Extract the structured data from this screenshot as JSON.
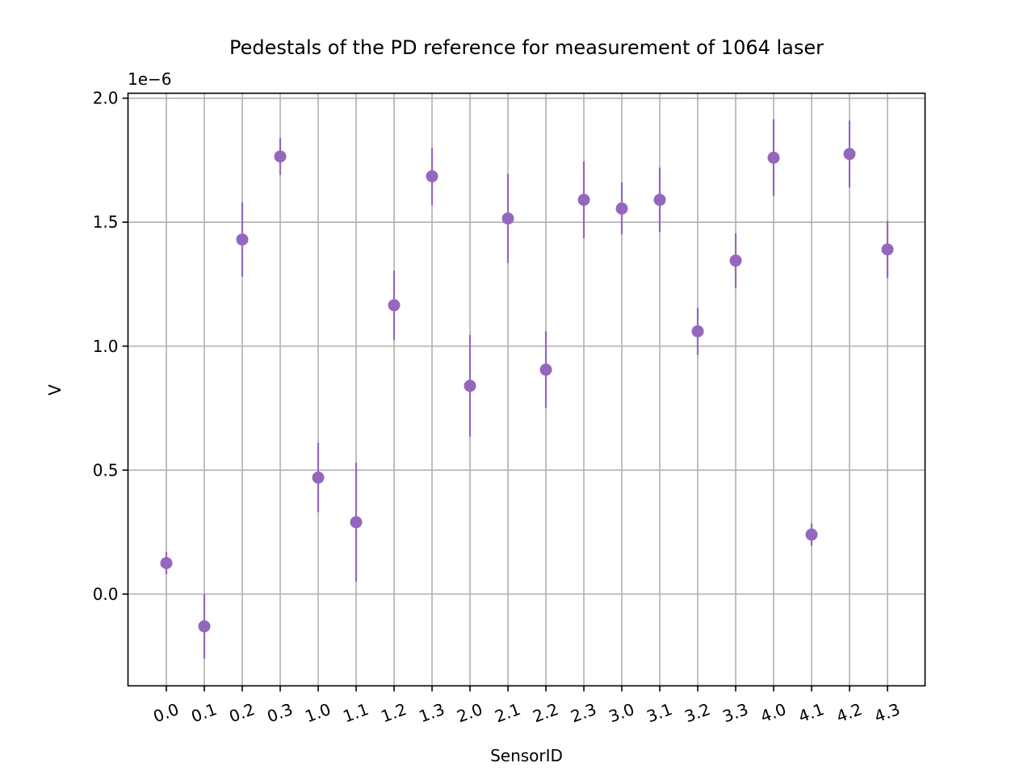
{
  "chart_data": {
    "type": "scatter",
    "title": "Pedestals of the PD reference for measurement of 1064 laser",
    "xlabel": "SensorID",
    "ylabel": "V",
    "y_offset_label": "1e−6",
    "ylim": [
      -0.37,
      2.02
    ],
    "yticks": [
      "0.0",
      "0.5",
      "1.0",
      "1.5",
      "2.0"
    ],
    "ytick_values": [
      0.0,
      0.5,
      1.0,
      1.5,
      2.0
    ],
    "grid": true,
    "marker_color": "#9467bd",
    "categories": [
      "0.0",
      "0.1",
      "0.2",
      "0.3",
      "1.0",
      "1.1",
      "1.2",
      "1.3",
      "2.0",
      "2.1",
      "2.2",
      "2.3",
      "3.0",
      "3.1",
      "3.2",
      "3.3",
      "4.0",
      "4.1",
      "4.2",
      "4.3"
    ],
    "values": [
      0.125,
      -0.13,
      1.43,
      1.765,
      0.47,
      0.29,
      1.165,
      1.685,
      0.84,
      1.515,
      0.905,
      1.59,
      1.555,
      1.59,
      1.06,
      1.345,
      1.76,
      0.24,
      1.775,
      1.39
    ],
    "errors": [
      0.045,
      0.13,
      0.15,
      0.075,
      0.14,
      0.24,
      0.14,
      0.115,
      0.205,
      0.18,
      0.155,
      0.155,
      0.105,
      0.13,
      0.095,
      0.11,
      0.155,
      0.045,
      0.135,
      0.115
    ]
  }
}
